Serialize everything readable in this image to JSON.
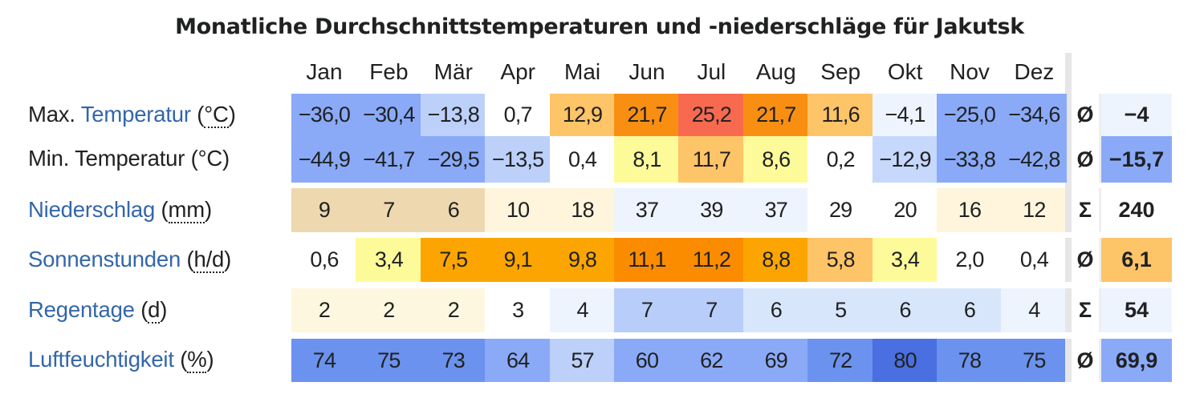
{
  "chart_data": {
    "type": "table",
    "title": "Monatliche Durchschnittstemperaturen und -niederschläge für Jakutsk",
    "months": [
      "Jan",
      "Feb",
      "Mär",
      "Apr",
      "Mai",
      "Jun",
      "Jul",
      "Aug",
      "Sep",
      "Okt",
      "Nov",
      "Dez"
    ],
    "rows": [
      {
        "prefix": "Max. ",
        "link": "Temperatur",
        "unit_open": " (",
        "unit": "°C",
        "unit_close": ")",
        "unit_abbr": true,
        "values": [
          "−36,0",
          "−30,4",
          "−13,8",
          "0,7",
          "12,9",
          "21,7",
          "25,2",
          "21,7",
          "11,6",
          "−4,1",
          "−25,0",
          "−34,6"
        ],
        "colors": [
          "#8aaaf8",
          "#8aaaf8",
          "#bcd0fa",
          "#ffffff",
          "#fec468",
          "#f98f12",
          "#f76a50",
          "#f98f12",
          "#fec468",
          "#eef4fe",
          "#8aaaf8",
          "#8aaaf8"
        ],
        "agg_symbol": "Ø",
        "agg_value": "−4",
        "agg_color": "#eef4fe"
      },
      {
        "prefix": "Min. Temperatur (°C)",
        "link": "",
        "unit_open": "",
        "unit": "",
        "unit_close": "",
        "unit_abbr": false,
        "values": [
          "−44,9",
          "−41,7",
          "−29,5",
          "−13,5",
          "0,4",
          "8,1",
          "11,7",
          "8,6",
          "0,2",
          "−12,9",
          "−33,8",
          "−42,8"
        ],
        "colors": [
          "#8aaaf8",
          "#8aaaf8",
          "#8aaaf8",
          "#bcd0fa",
          "#ffffff",
          "#fdfa9a",
          "#fec468",
          "#fdfa9a",
          "#ffffff",
          "#c6d8fb",
          "#8aaaf8",
          "#8aaaf8"
        ],
        "agg_symbol": "Ø",
        "agg_value": "−15,7",
        "agg_color": "#8aaaf8"
      },
      {
        "prefix": "",
        "link": "Niederschlag",
        "unit_open": " (",
        "unit": "mm",
        "unit_close": ")",
        "unit_abbr": true,
        "values": [
          "9",
          "7",
          "6",
          "10",
          "18",
          "37",
          "39",
          "37",
          "29",
          "20",
          "16",
          "12"
        ],
        "colors": [
          "#eed8b0",
          "#eed8b0",
          "#eed8b0",
          "#fef5dc",
          "#fef5dc",
          "#eef4fe",
          "#eef4fe",
          "#eef4fe",
          "#ffffff",
          "#ffffff",
          "#fef5dc",
          "#fef5dc"
        ],
        "agg_symbol": "Σ",
        "agg_value": "240",
        "agg_color": "#ffffff"
      },
      {
        "prefix": "",
        "link": "Sonnenstunden",
        "unit_open": " (",
        "unit": "h/d",
        "unit_close": ")",
        "unit_abbr": true,
        "values": [
          "0,6",
          "3,4",
          "7,5",
          "9,1",
          "9,8",
          "11,1",
          "11,2",
          "8,8",
          "5,8",
          "3,4",
          "2,0",
          "0,4"
        ],
        "colors": [
          "#ffffff",
          "#fdfa9a",
          "#fca500",
          "#fca500",
          "#fca500",
          "#fb8c00",
          "#fb8c00",
          "#fca500",
          "#fec468",
          "#fdfa9a",
          "#ffffff",
          "#ffffff"
        ],
        "agg_symbol": "Ø",
        "agg_value": "6,1",
        "agg_color": "#fec468"
      },
      {
        "prefix": "",
        "link": "Regentage",
        "unit_open": " (",
        "unit": "d",
        "unit_close": ")",
        "unit_abbr": true,
        "values": [
          "2",
          "2",
          "2",
          "3",
          "4",
          "7",
          "7",
          "6",
          "5",
          "6",
          "6",
          "4"
        ],
        "colors": [
          "#fef7e0",
          "#fef7e0",
          "#fef7e0",
          "#ffffff",
          "#eef4fe",
          "#b8cdfa",
          "#b8cdfa",
          "#d8e6fc",
          "#d8e6fc",
          "#d8e6fc",
          "#d8e6fc",
          "#eef4fe"
        ],
        "agg_symbol": "Σ",
        "agg_value": "54",
        "agg_color": "#eef4fe"
      },
      {
        "prefix": "",
        "link": "Luftfeuchtigkeit",
        "unit_open": " (",
        "unit": "%",
        "unit_close": ")",
        "unit_abbr": true,
        "values": [
          "74",
          "75",
          "73",
          "64",
          "57",
          "60",
          "62",
          "69",
          "72",
          "80",
          "78",
          "75"
        ],
        "colors": [
          "#6b92ee",
          "#6b92ee",
          "#6b92ee",
          "#8aaaf8",
          "#bcd0fa",
          "#8aaaf8",
          "#8aaaf8",
          "#8aaaf8",
          "#6b92ee",
          "#4a6fe0",
          "#6b92ee",
          "#6b92ee"
        ],
        "agg_symbol": "Ø",
        "agg_value": "69,9",
        "agg_color": "#8aaaf8"
      }
    ]
  }
}
